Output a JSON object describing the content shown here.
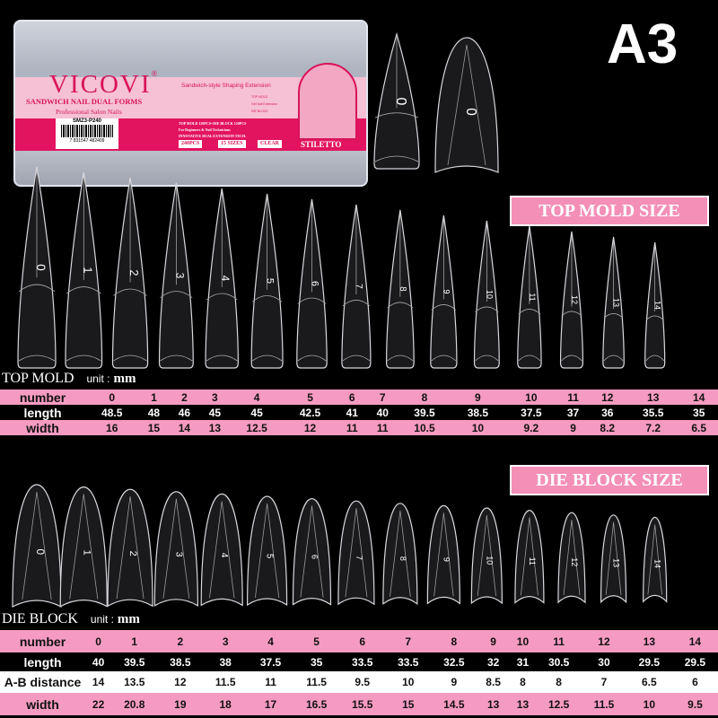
{
  "badge": "A3",
  "package": {
    "brand": "VICOVI",
    "registered": "®",
    "title": "SANDWICH NAIL DUAL FORMS",
    "subtitle": "Professional Salon Nails",
    "tagline": "Sandwich-style Shaping Extension",
    "diagram_labels": [
      "TOP MOLD",
      "Gel Nail Extension",
      "DIE BLOCK"
    ],
    "sku": "SMZ3-P240",
    "barcode": "7 831547 482409",
    "features": [
      "TOP MOLD 120PCS+DIE BLOCK 120PCS",
      "For Beginners & Nail Technicians",
      "INNOVATIVE DUAL EXTENSION TECH."
    ],
    "chips": [
      "240PCS",
      "15 SIZES",
      "CLEAR"
    ],
    "shape": "STILETTO",
    "arch_labels": [
      "TOP MOLD",
      "DIE BLOCK"
    ]
  },
  "sample_labels": [
    "0",
    "0"
  ],
  "top_mold": {
    "section_label": "TOP MOLD SIZE",
    "table_title": "TOP MOLD",
    "unit_label": "unit :",
    "unit": "mm",
    "rows": [
      {
        "label": "number",
        "values": [
          "0",
          "1",
          "2",
          "3",
          "4",
          "5",
          "6",
          "7",
          "8",
          "9",
          "10",
          "11",
          "12",
          "13",
          "14"
        ]
      },
      {
        "label": "length",
        "values": [
          "48.5",
          "48",
          "46",
          "45",
          "45",
          "42.5",
          "41",
          "40",
          "39.5",
          "38.5",
          "37.5",
          "37",
          "36",
          "35.5",
          "35"
        ]
      },
      {
        "label": "width",
        "values": [
          "16",
          "15",
          "14",
          "13",
          "12.5",
          "12",
          "11",
          "11",
          "10.5",
          "10",
          "9.2",
          "9",
          "8.2",
          "7.2",
          "6.5"
        ]
      }
    ]
  },
  "die_block": {
    "section_label": "DIE BLOCK SIZE",
    "table_title": "DIE BLOCK",
    "unit_label": "unit :",
    "unit": "mm",
    "rows": [
      {
        "label": "number",
        "values": [
          "0",
          "1",
          "2",
          "3",
          "4",
          "5",
          "6",
          "7",
          "8",
          "9",
          "10",
          "11",
          "12",
          "13",
          "14"
        ]
      },
      {
        "label": "length",
        "values": [
          "40",
          "39.5",
          "38.5",
          "38",
          "37.5",
          "35",
          "33.5",
          "33.5",
          "32.5",
          "32",
          "31",
          "30.5",
          "30",
          "29.5",
          "29.5"
        ]
      },
      {
        "label": "A-B distance",
        "values": [
          "14",
          "13.5",
          "12",
          "11.5",
          "11",
          "11.5",
          "9.5",
          "10",
          "9",
          "8.5",
          "8",
          "8",
          "7",
          "6.5",
          "6"
        ]
      },
      {
        "label": "width",
        "values": [
          "22",
          "20.8",
          "19",
          "18",
          "17",
          "16.5",
          "15.5",
          "15",
          "14.5",
          "13",
          "13",
          "12.5",
          "11.5",
          "10",
          "9.5"
        ]
      }
    ]
  },
  "colors": {
    "pink": "#f59bc1",
    "magenta": "#e3145f",
    "background": "#000000"
  }
}
